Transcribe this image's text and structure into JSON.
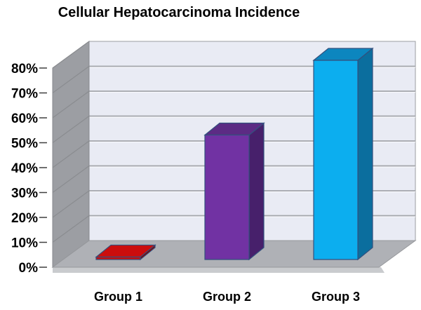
{
  "chart_data": {
    "type": "bar",
    "projection": "3d",
    "title": "Cellular Hepatocarcinoma Incidence",
    "categories": [
      "Group 1",
      "Group 2",
      "Group 3"
    ],
    "values": [
      1,
      50,
      80
    ],
    "unit": "%",
    "xlabel": "",
    "ylabel": "",
    "ylim": [
      0,
      80
    ],
    "ytick_step": 10,
    "ytick_labels": [
      "0%",
      "10%",
      "20%",
      "30%",
      "40%",
      "50%",
      "60%",
      "70%",
      "80%"
    ],
    "grid": true,
    "legend": "none",
    "bar_colors": [
      {
        "name": "red",
        "front": "#C90C0C",
        "side": "#7E0606",
        "top": "#CB0D0D"
      },
      {
        "name": "purple",
        "front": "#7132A3",
        "side": "#47206B",
        "top": "#5C2B84"
      },
      {
        "name": "cyan",
        "front": "#0CAEEF",
        "side": "#0B6E9E",
        "top": "#0C86BF"
      }
    ],
    "bar_outline_color": "#33507E",
    "colors": {
      "background": "#FFFFFF",
      "back_wall": "#E9EBF4",
      "side_wall": "#9C9EA3",
      "floor": "#AFB1B6",
      "floor_edge": "#C9CBCE",
      "gridline": "#A3A6AB",
      "side_wall_gridline": "#8A8C90",
      "tick": "#3F3F3F",
      "text": "#000000"
    }
  }
}
